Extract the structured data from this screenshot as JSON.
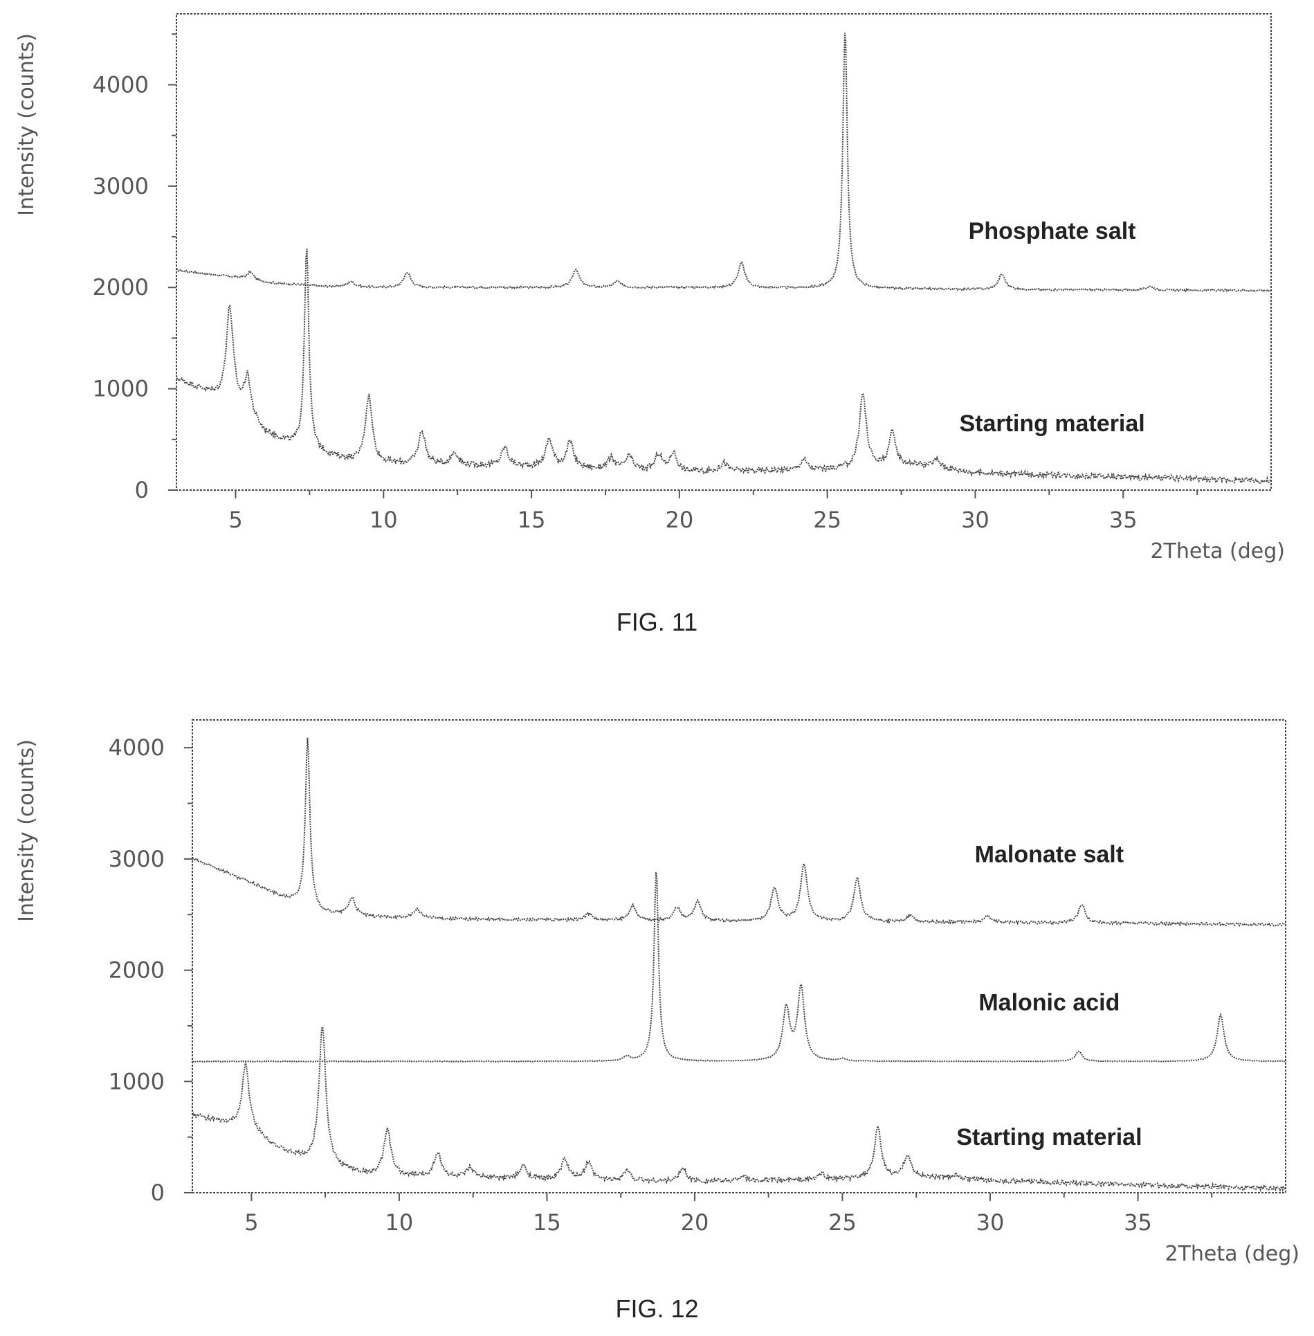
{
  "chart_data": [
    {
      "type": "line",
      "caption": "FIG. 11",
      "xlabel": "2Theta (deg)",
      "ylabel": "Intensity (counts)",
      "xlim": [
        3,
        40
      ],
      "ylim": [
        0,
        4700
      ],
      "xticks": [
        5,
        10,
        15,
        20,
        25,
        30,
        35
      ],
      "yticks": [
        0,
        1000,
        2000,
        3000,
        4000
      ],
      "grid": false,
      "series": [
        {
          "name": "Phosphate salt",
          "label_at": [
            32.6,
            2480
          ],
          "baseline": [
            [
              3,
              2170
            ],
            [
              5,
              2100
            ],
            [
              6,
              2050
            ],
            [
              8,
              2010
            ],
            [
              10,
              2000
            ],
            [
              20,
              2000
            ],
            [
              30,
              1980
            ],
            [
              40,
              1970
            ]
          ],
          "peaks": [
            [
              5.5,
              2150
            ],
            [
              8.9,
              2060
            ],
            [
              10.8,
              2150
            ],
            [
              16.5,
              2180
            ],
            [
              17.9,
              2060
            ],
            [
              22.1,
              2240
            ],
            [
              25.6,
              4550
            ],
            [
              30.9,
              2130
            ],
            [
              35.9,
              2010
            ]
          ]
        },
        {
          "name": "Starting material",
          "label_at": [
            32.6,
            580
          ],
          "baseline": [
            [
              3,
              1100
            ],
            [
              4,
              970
            ],
            [
              5,
              820
            ],
            [
              6,
              560
            ],
            [
              7,
              430
            ],
            [
              8,
              350
            ],
            [
              9,
              280
            ],
            [
              10,
              260
            ],
            [
              15,
              230
            ],
            [
              20,
              180
            ],
            [
              25,
              200
            ],
            [
              28,
              250
            ],
            [
              30,
              170
            ],
            [
              35,
              130
            ],
            [
              40,
              90
            ]
          ],
          "peaks": [
            [
              4.8,
              1800
            ],
            [
              5.4,
              1100
            ],
            [
              7.4,
              2400
            ],
            [
              9.5,
              930
            ],
            [
              11.3,
              580
            ],
            [
              12.4,
              370
            ],
            [
              14.1,
              420
            ],
            [
              15.6,
              500
            ],
            [
              16.3,
              470
            ],
            [
              17.7,
              310
            ],
            [
              18.3,
              330
            ],
            [
              19.3,
              350
            ],
            [
              19.8,
              370
            ],
            [
              21.5,
              270
            ],
            [
              24.2,
              300
            ],
            [
              26.2,
              950
            ],
            [
              27.2,
              560
            ],
            [
              28.7,
              300
            ]
          ]
        }
      ]
    },
    {
      "type": "line",
      "caption": "FIG. 12",
      "xlabel": "2Theta (deg)",
      "ylabel": "Intensity (counts)",
      "xlim": [
        3,
        40
      ],
      "ylim": [
        0,
        4250
      ],
      "xticks": [
        5,
        10,
        15,
        20,
        25,
        30,
        35
      ],
      "yticks": [
        0,
        1000,
        2000,
        3000,
        4000
      ],
      "grid": false,
      "series": [
        {
          "name": "Malonate salt",
          "label_at": [
            32.0,
            2970
          ],
          "baseline": [
            [
              3,
              3000
            ],
            [
              4.5,
              2850
            ],
            [
              6,
              2660
            ],
            [
              7.5,
              2510
            ],
            [
              9,
              2480
            ],
            [
              12,
              2460
            ],
            [
              20,
              2440
            ],
            [
              30,
              2430
            ],
            [
              40,
              2410
            ]
          ],
          "peaks": [
            [
              4.5,
              2830
            ],
            [
              6.9,
              4100
            ],
            [
              8.4,
              2650
            ],
            [
              10.6,
              2550
            ],
            [
              16.4,
              2510
            ],
            [
              17.9,
              2580
            ],
            [
              19.4,
              2560
            ],
            [
              20.1,
              2620
            ],
            [
              22.7,
              2740
            ],
            [
              23.7,
              2950
            ],
            [
              25.5,
              2820
            ],
            [
              27.3,
              2490
            ],
            [
              29.9,
              2490
            ],
            [
              33.1,
              2590
            ]
          ]
        },
        {
          "name": "Malonic acid",
          "label_at": [
            32.0,
            1640
          ],
          "baseline": [
            [
              3,
              1180
            ],
            [
              40,
              1180
            ]
          ],
          "peaks": [
            [
              17.7,
              1220
            ],
            [
              18.7,
              2900
            ],
            [
              23.1,
              1650
            ],
            [
              23.6,
              1840
            ],
            [
              25.0,
              1200
            ],
            [
              33.0,
              1270
            ],
            [
              37.8,
              1600
            ]
          ]
        },
        {
          "name": "Starting material",
          "label_at": [
            32.0,
            430
          ],
          "baseline": [
            [
              3,
              700
            ],
            [
              4,
              630
            ],
            [
              5,
              560
            ],
            [
              6,
              380
            ],
            [
              7,
              270
            ],
            [
              8,
              210
            ],
            [
              9,
              160
            ],
            [
              10,
              150
            ],
            [
              15,
              120
            ],
            [
              20,
              100
            ],
            [
              25,
              120
            ],
            [
              28,
              140
            ],
            [
              30,
              110
            ],
            [
              35,
              70
            ],
            [
              40,
              40
            ]
          ],
          "peaks": [
            [
              4.8,
              1150
            ],
            [
              7.4,
              1500
            ],
            [
              9.6,
              570
            ],
            [
              11.3,
              360
            ],
            [
              12.4,
              220
            ],
            [
              14.2,
              240
            ],
            [
              15.6,
              300
            ],
            [
              16.4,
              270
            ],
            [
              17.7,
              200
            ],
            [
              19.6,
              220
            ],
            [
              21.6,
              150
            ],
            [
              24.3,
              170
            ],
            [
              26.2,
              580
            ],
            [
              27.2,
              340
            ],
            [
              28.8,
              160
            ]
          ]
        }
      ]
    }
  ]
}
